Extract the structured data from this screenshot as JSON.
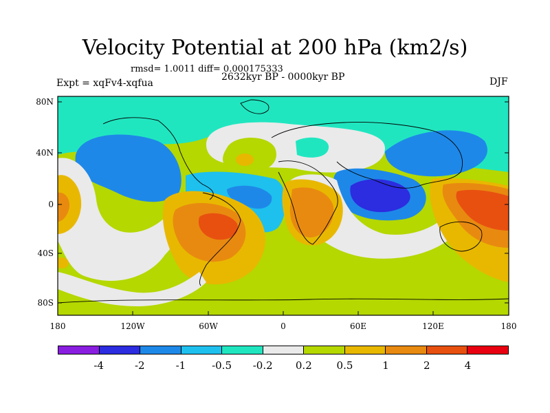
{
  "title": "Velocity Potential at 200 hPa (km2/s)",
  "subtitle": "rmsd= 1.0011 diff= 0.000175333",
  "left_label": "Expt = xqFv4-xqfua",
  "center_label": "2632kyr BP - 0000kyr BP",
  "right_label": "DJF",
  "lat_ticks": [
    "80N",
    "40N",
    "0",
    "40S",
    "80S"
  ],
  "lon_ticks": [
    "180",
    "120W",
    "60W",
    "0",
    "60E",
    "120E",
    "180"
  ],
  "colorbar": {
    "labels": [
      "-4",
      "-2",
      "-1",
      "-0.5",
      "-0.2",
      "0.2",
      "0.5",
      "1",
      "2",
      "4"
    ],
    "colors": [
      "#8a1ee0",
      "#2c2ce0",
      "#1e88e8",
      "#1ec0ee",
      "#20e6c0",
      "#eaeaea",
      "#b4d800",
      "#e8b800",
      "#e88a10",
      "#e85010",
      "#e80010"
    ]
  }
}
